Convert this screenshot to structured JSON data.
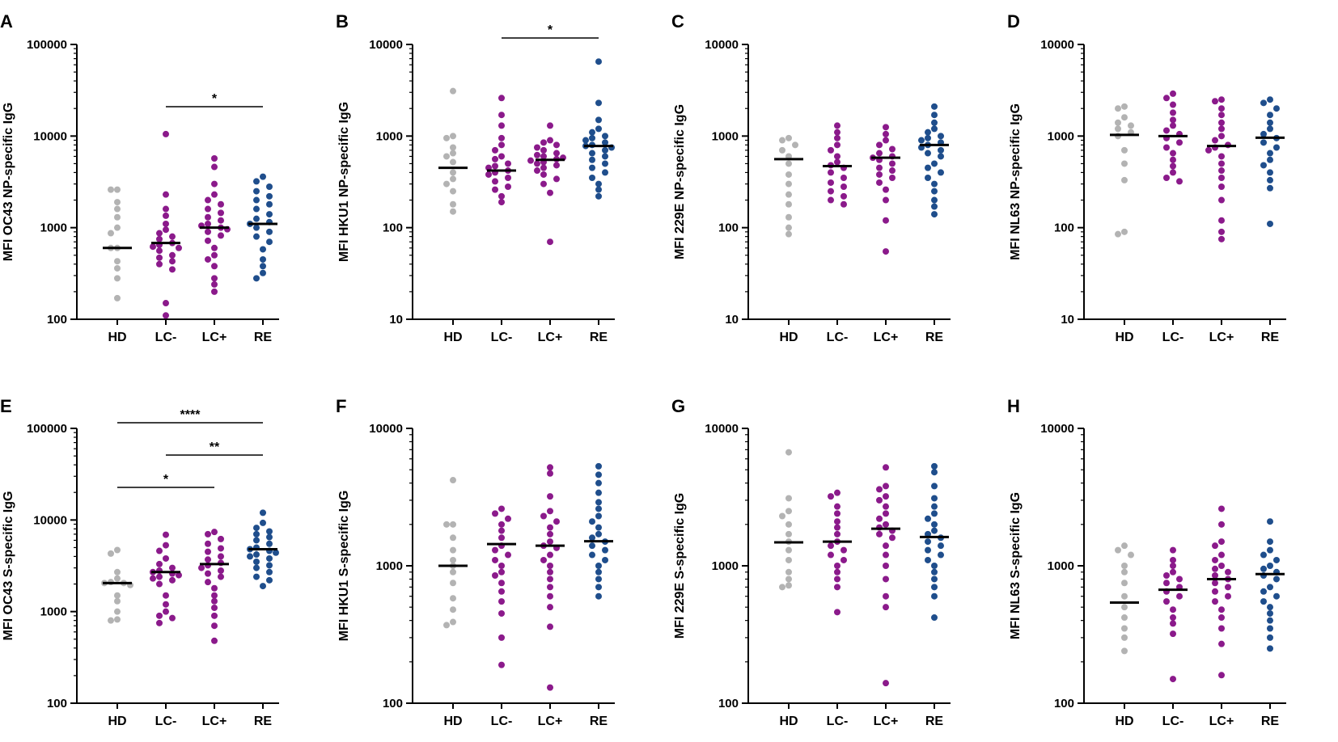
{
  "colors": {
    "HD": "#b3b3b3",
    "LC-": "#8b1a8b",
    "LC+": "#8b1a8b",
    "RE": "#1f4e8c",
    "axis": "#000000",
    "median": "#000000"
  },
  "chart_data": [
    {
      "type": "scatter",
      "letter": "A",
      "ylabel": "MFI OC43 NP-specific IgG",
      "scale": "log",
      "ylim": [
        100,
        100000
      ],
      "yticks": [
        "100",
        "1000",
        "10000",
        "100000"
      ],
      "categories": [
        "HD",
        "LC-",
        "LC+",
        "RE"
      ],
      "medians": [
        600,
        680,
        1000,
        1100
      ],
      "series": [
        {
          "name": "HD",
          "values": [
            2600,
            2600,
            1900,
            1600,
            1300,
            1000,
            870,
            600,
            600,
            430,
            360,
            280,
            170
          ]
        },
        {
          "name": "LC-",
          "values": [
            10500,
            2300,
            1600,
            1350,
            1100,
            950,
            870,
            800,
            750,
            680,
            650,
            620,
            600,
            560,
            500,
            470,
            430,
            400,
            350,
            150,
            110
          ]
        },
        {
          "name": "LC+",
          "values": [
            5700,
            4600,
            3000,
            2300,
            2000,
            1800,
            1600,
            1450,
            1300,
            1200,
            1100,
            1050,
            1000,
            960,
            900,
            820,
            720,
            600,
            500,
            450,
            380,
            280,
            240,
            200
          ]
        },
        {
          "name": "RE",
          "values": [
            3600,
            3200,
            2800,
            2500,
            2200,
            2000,
            1800,
            1600,
            1400,
            1250,
            1150,
            1100,
            1000,
            900,
            800,
            700,
            580,
            450,
            380,
            320,
            280
          ]
        }
      ],
      "significance": [
        {
          "from": "LC-",
          "to": "RE",
          "label": "*"
        }
      ]
    },
    {
      "type": "scatter",
      "letter": "B",
      "ylabel": "MFI HKU1 NP-specific IgG",
      "scale": "log",
      "ylim": [
        10,
        10000
      ],
      "yticks": [
        "10",
        "100",
        "1000",
        "10000"
      ],
      "categories": [
        "HD",
        "LC-",
        "LC+",
        "RE"
      ],
      "medians": [
        450,
        420,
        550,
        780
      ],
      "series": [
        {
          "name": "HD",
          "values": [
            3100,
            1000,
            950,
            750,
            650,
            600,
            520,
            400,
            340,
            300,
            250,
            180,
            150
          ]
        },
        {
          "name": "LC-",
          "values": [
            2600,
            1700,
            1300,
            950,
            800,
            700,
            600,
            560,
            500,
            470,
            450,
            420,
            400,
            380,
            350,
            320,
            280,
            260,
            220,
            190
          ]
        },
        {
          "name": "LC+",
          "values": [
            1300,
            900,
            850,
            800,
            750,
            700,
            650,
            620,
            600,
            580,
            560,
            540,
            520,
            500,
            480,
            450,
            420,
            380,
            340,
            300,
            240,
            70
          ]
        },
        {
          "name": "RE",
          "values": [
            6500,
            2300,
            1500,
            1200,
            1100,
            1000,
            950,
            900,
            850,
            800,
            780,
            750,
            700,
            650,
            600,
            550,
            500,
            450,
            400,
            350,
            300,
            260,
            220
          ]
        }
      ],
      "significance": [
        {
          "from": "LC-",
          "to": "RE",
          "label": "*"
        }
      ]
    },
    {
      "type": "scatter",
      "letter": "C",
      "ylabel": "MFI 229E NP-specific IgG",
      "scale": "log",
      "ylim": [
        10,
        10000
      ],
      "yticks": [
        "10",
        "100",
        "1000",
        "10000"
      ],
      "categories": [
        "HD",
        "LC-",
        "LC+",
        "RE"
      ],
      "medians": [
        560,
        470,
        580,
        800
      ],
      "series": [
        {
          "name": "HD",
          "values": [
            950,
            900,
            800,
            700,
            600,
            500,
            380,
            300,
            230,
            180,
            130,
            100,
            85
          ]
        },
        {
          "name": "LC-",
          "values": [
            1300,
            1100,
            950,
            800,
            700,
            600,
            520,
            480,
            450,
            400,
            350,
            310,
            280,
            250,
            220,
            200,
            180
          ]
        },
        {
          "name": "LC+",
          "values": [
            1250,
            1050,
            900,
            800,
            720,
            650,
            600,
            580,
            550,
            500,
            450,
            420,
            380,
            350,
            310,
            260,
            200,
            120,
            55
          ]
        },
        {
          "name": "RE",
          "values": [
            2100,
            1700,
            1400,
            1200,
            1100,
            1000,
            950,
            900,
            850,
            800,
            750,
            700,
            650,
            600,
            500,
            450,
            400,
            350,
            300,
            250,
            200,
            170,
            140
          ]
        }
      ],
      "significance": []
    },
    {
      "type": "scatter",
      "letter": "D",
      "ylabel": "MFI NL63 NP-specific IgG",
      "scale": "log",
      "ylim": [
        10,
        10000
      ],
      "yticks": [
        "10",
        "100",
        "1000",
        "10000"
      ],
      "categories": [
        "HD",
        "LC-",
        "LC+",
        "RE"
      ],
      "medians": [
        1030,
        1000,
        780,
        960
      ],
      "series": [
        {
          "name": "HD",
          "values": [
            2100,
            2000,
            1600,
            1400,
            1300,
            1200,
            1100,
            1000,
            700,
            500,
            330,
            90,
            85
          ]
        },
        {
          "name": "LC-",
          "values": [
            2900,
            2600,
            2200,
            1800,
            1500,
            1300,
            1150,
            1050,
            950,
            850,
            750,
            650,
            550,
            470,
            400,
            350,
            320
          ]
        },
        {
          "name": "LC+",
          "values": [
            2500,
            2400,
            2000,
            1700,
            1400,
            1200,
            1000,
            900,
            800,
            750,
            700,
            600,
            500,
            420,
            350,
            280,
            200,
            120,
            90,
            75
          ]
        },
        {
          "name": "RE",
          "values": [
            2500,
            2300,
            2000,
            1700,
            1400,
            1200,
            1050,
            950,
            850,
            750,
            650,
            550,
            480,
            400,
            330,
            270,
            110
          ]
        }
      ],
      "significance": []
    },
    {
      "type": "scatter",
      "letter": "E",
      "ylabel": "MFI OC43 S-specific IgG",
      "scale": "log",
      "ylim": [
        100,
        100000
      ],
      "yticks": [
        "100",
        "1000",
        "10000",
        "100000"
      ],
      "categories": [
        "HD",
        "LC-",
        "LC+",
        "RE"
      ],
      "medians": [
        2050,
        2700,
        3300,
        4800
      ],
      "series": [
        {
          "name": "HD",
          "values": [
            4700,
            4300,
            2700,
            2300,
            2100,
            2050,
            2050,
            1950,
            1500,
            1300,
            1000,
            820,
            800
          ]
        },
        {
          "name": "LC-",
          "values": [
            6900,
            5300,
            4600,
            3800,
            3300,
            3000,
            2800,
            2700,
            2600,
            2500,
            2400,
            2300,
            2200,
            2000,
            1500,
            1200,
            1000,
            900,
            850,
            750
          ]
        },
        {
          "name": "LC+",
          "values": [
            7400,
            7000,
            6200,
            5500,
            4900,
            4500,
            4000,
            3700,
            3400,
            3200,
            3000,
            2800,
            2600,
            2400,
            2100,
            1800,
            1500,
            1300,
            1100,
            900,
            700,
            480
          ]
        },
        {
          "name": "RE",
          "values": [
            12000,
            9300,
            8200,
            7500,
            7000,
            6500,
            6000,
            5500,
            5000,
            4800,
            4600,
            4400,
            4200,
            4000,
            3800,
            3500,
            3200,
            3000,
            2700,
            2400,
            2200,
            1900
          ]
        }
      ],
      "significance": [
        {
          "from": "HD",
          "to": "RE",
          "label": "****"
        },
        {
          "from": "LC-",
          "to": "RE",
          "label": "**"
        },
        {
          "from": "HD",
          "to": "LC+",
          "label": "*"
        }
      ]
    },
    {
      "type": "scatter",
      "letter": "F",
      "ylabel": "MFI HKU1 S-specific IgG",
      "scale": "log",
      "ylim": [
        100,
        10000
      ],
      "yticks": [
        "100",
        "1000",
        "10000"
      ],
      "categories": [
        "HD",
        "LC-",
        "LC+",
        "RE"
      ],
      "medians": [
        1000,
        1440,
        1400,
        1510
      ],
      "series": [
        {
          "name": "HD",
          "values": [
            4200,
            2000,
            2000,
            1600,
            1300,
            1100,
            1000,
            900,
            750,
            580,
            480,
            390,
            370
          ]
        },
        {
          "name": "LC-",
          "values": [
            2600,
            2400,
            2200,
            2000,
            1800,
            1600,
            1400,
            1300,
            1200,
            1100,
            1000,
            900,
            850,
            750,
            650,
            550,
            450,
            300,
            190
          ]
        },
        {
          "name": "LC+",
          "values": [
            5200,
            4700,
            3200,
            2500,
            2300,
            2100,
            1900,
            1700,
            1500,
            1400,
            1350,
            1200,
            1100,
            1000,
            900,
            800,
            700,
            600,
            500,
            360,
            130
          ]
        },
        {
          "name": "RE",
          "values": [
            5300,
            4600,
            4000,
            3400,
            2900,
            2600,
            2300,
            2100,
            1900,
            1700,
            1600,
            1500,
            1400,
            1300,
            1200,
            1100,
            1000,
            900,
            800,
            700,
            600
          ]
        }
      ],
      "significance": []
    },
    {
      "type": "scatter",
      "letter": "G",
      "ylabel": "MFI 229E S-specific IgG",
      "scale": "log",
      "ylim": [
        100,
        10000
      ],
      "yticks": [
        "100",
        "1000",
        "10000"
      ],
      "categories": [
        "HD",
        "LC-",
        "LC+",
        "RE"
      ],
      "medians": [
        1480,
        1500,
        1860,
        1620
      ],
      "series": [
        {
          "name": "HD",
          "values": [
            6700,
            3100,
            2500,
            2300,
            2000,
            1700,
            1500,
            1300,
            1100,
            900,
            800,
            720,
            700
          ]
        },
        {
          "name": "LC-",
          "values": [
            3400,
            3200,
            2700,
            2400,
            2100,
            1900,
            1700,
            1500,
            1400,
            1300,
            1200,
            1100,
            1000,
            900,
            800,
            700,
            460
          ]
        },
        {
          "name": "LC+",
          "values": [
            5200,
            3800,
            3600,
            3200,
            3000,
            2700,
            2400,
            2200,
            2000,
            1900,
            1800,
            1700,
            1600,
            1400,
            1200,
            1000,
            800,
            600,
            500,
            140
          ]
        },
        {
          "name": "RE",
          "values": [
            5300,
            4800,
            3800,
            3100,
            2700,
            2400,
            2200,
            2000,
            1800,
            1700,
            1600,
            1500,
            1400,
            1300,
            1200,
            1100,
            1000,
            900,
            800,
            700,
            600,
            420
          ]
        }
      ],
      "significance": []
    },
    {
      "type": "scatter",
      "letter": "H",
      "ylabel": "MFI NL63 S-specific IgG",
      "scale": "log",
      "ylim": [
        100,
        10000
      ],
      "yticks": [
        "100",
        "1000",
        "10000"
      ],
      "categories": [
        "HD",
        "LC-",
        "LC+",
        "RE"
      ],
      "medians": [
        540,
        670,
        800,
        870
      ],
      "series": [
        {
          "name": "HD",
          "values": [
            1400,
            1300,
            1200,
            1000,
            900,
            750,
            600,
            500,
            420,
            350,
            300,
            240
          ]
        },
        {
          "name": "LC-",
          "values": [
            1300,
            1100,
            1000,
            900,
            850,
            800,
            750,
            700,
            650,
            600,
            550,
            480,
            420,
            380,
            320,
            150
          ]
        },
        {
          "name": "LC+",
          "values": [
            2600,
            2000,
            1500,
            1400,
            1200,
            1100,
            1000,
            950,
            900,
            850,
            800,
            750,
            700,
            650,
            600,
            550,
            480,
            420,
            350,
            270,
            160
          ]
        },
        {
          "name": "RE",
          "values": [
            2100,
            1500,
            1300,
            1200,
            1100,
            1000,
            950,
            900,
            850,
            800,
            700,
            650,
            600,
            550,
            500,
            450,
            400,
            350,
            300,
            250
          ]
        }
      ],
      "significance": []
    }
  ]
}
